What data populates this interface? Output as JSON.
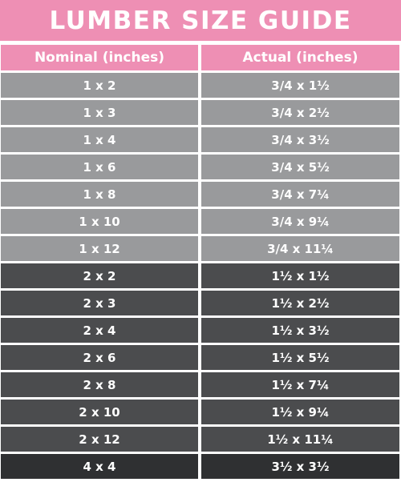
{
  "header": {
    "title": "LUMBER SIZE GUIDE"
  },
  "table": {
    "columns": [
      "Nominal (inches)",
      "Actual (inches)"
    ],
    "rows": [
      [
        "1 x 2",
        "3/4 x 1½"
      ],
      [
        "1 x 3",
        "3/4 x 2½"
      ],
      [
        "1 x 4",
        "3/4 x 3½"
      ],
      [
        "1 x 6",
        "3/4 x 5½"
      ],
      [
        "1 x 8",
        "3/4 x 7¼"
      ],
      [
        "1 x 10",
        "3/4 x 9¼"
      ],
      [
        "1 x 12",
        "3/4 x 11¼"
      ],
      [
        "2 x 2",
        "1½ x 1½"
      ],
      [
        "2 x 3",
        "1½ x 2½"
      ],
      [
        "2 x 4",
        "1½ x 3½"
      ],
      [
        "2 x 6",
        "1½ x 5½"
      ],
      [
        "2 x 8",
        "1½ x 7¼"
      ],
      [
        "2 x 10",
        "1½ x 9¼"
      ],
      [
        "2 x 12",
        "1½ x 11¼"
      ],
      [
        "4 x 4",
        "3½ x 3½"
      ]
    ]
  }
}
